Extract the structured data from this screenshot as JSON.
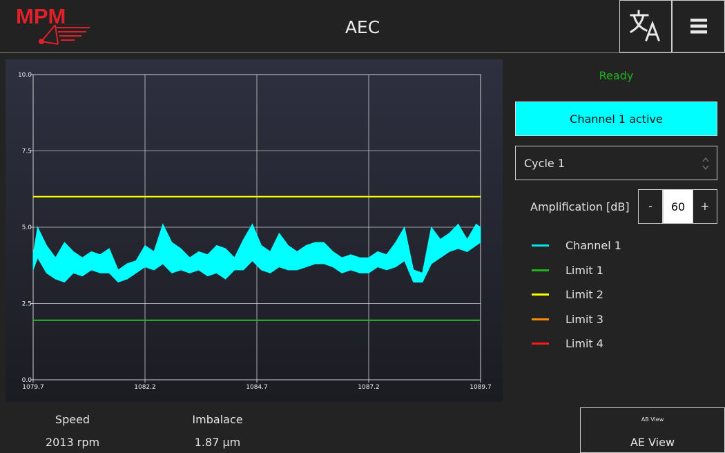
{
  "header": {
    "title": "AEC",
    "logo_text": "MPM",
    "logo_color": "#e0202a",
    "translate_icon": "translate-icon",
    "menu_icon": "hamburger-menu-icon"
  },
  "status": {
    "text": "Ready",
    "color": "#1fb51f"
  },
  "channel_button": {
    "label": "Channel 1 active",
    "color": "#00ffff"
  },
  "cycle_select": {
    "value": "Cycle 1"
  },
  "amplification": {
    "label": "Amplification [dB]",
    "value": "60",
    "minus_label": "-",
    "plus_label": "+"
  },
  "legend": [
    {
      "label": "Channel 1",
      "color": "#00e5ee"
    },
    {
      "label": "Limit 1",
      "color": "#22b522"
    },
    {
      "label": "Limit 2",
      "color": "#ffff00"
    },
    {
      "label": "Limit 3",
      "color": "#ff8c00"
    },
    {
      "label": "Limit 4",
      "color": "#ff1a1a"
    }
  ],
  "info": {
    "speed_label": "Speed",
    "speed_value": "2013 rpm",
    "imbalance_label": "Imbalace",
    "imbalance_value": "1.87 µm"
  },
  "view_button": {
    "small_label": "AB View",
    "label": "AE View"
  },
  "chart_data": {
    "type": "area",
    "x_ticks": [
      "1079.7",
      "1082.2",
      "1084.7",
      "1087.2",
      "1089.7"
    ],
    "y_ticks": [
      "0.0",
      "2.5",
      "5.0",
      "7.5",
      "10.0"
    ],
    "xlim": [
      1079.7,
      1089.7
    ],
    "ylim": [
      0,
      10
    ],
    "grid": true,
    "limit_lines": [
      {
        "name": "Limit 1",
        "value": 1.95,
        "color": "#22b522"
      },
      {
        "name": "Limit 2",
        "value": 6.0,
        "color": "#ffff00"
      }
    ],
    "series": [
      {
        "name": "Channel 1",
        "color": "#00ffff",
        "x": [
          1079.7,
          1079.8,
          1080.0,
          1080.2,
          1080.4,
          1080.6,
          1080.8,
          1081.0,
          1081.2,
          1081.4,
          1081.6,
          1081.8,
          1082.0,
          1082.2,
          1082.4,
          1082.6,
          1082.8,
          1083.0,
          1083.2,
          1083.4,
          1083.6,
          1083.8,
          1084.0,
          1084.2,
          1084.4,
          1084.6,
          1084.8,
          1085.0,
          1085.2,
          1085.4,
          1085.6,
          1085.8,
          1086.0,
          1086.2,
          1086.4,
          1086.6,
          1086.8,
          1087.0,
          1087.2,
          1087.4,
          1087.6,
          1087.8,
          1088.0,
          1088.2,
          1088.4,
          1088.6,
          1088.8,
          1089.0,
          1089.2,
          1089.4,
          1089.6,
          1089.7
        ],
        "upper": [
          4.1,
          5.0,
          4.4,
          4.0,
          4.5,
          4.2,
          4.0,
          4.2,
          4.1,
          4.3,
          3.6,
          3.8,
          3.9,
          4.4,
          4.2,
          5.1,
          4.5,
          4.3,
          4.0,
          4.2,
          4.1,
          4.4,
          4.3,
          4.0,
          4.6,
          5.1,
          4.4,
          4.2,
          4.8,
          4.4,
          4.2,
          4.4,
          4.5,
          4.5,
          4.2,
          4.0,
          4.1,
          4.0,
          4.0,
          4.2,
          4.1,
          4.5,
          5.0,
          3.6,
          3.5,
          5.0,
          4.6,
          4.8,
          5.1,
          4.6,
          5.1,
          5.0
        ],
        "lower": [
          3.6,
          4.0,
          3.5,
          3.3,
          3.2,
          3.5,
          3.4,
          3.6,
          3.5,
          3.5,
          3.2,
          3.3,
          3.5,
          3.7,
          3.6,
          3.8,
          3.5,
          3.6,
          3.5,
          3.6,
          3.4,
          3.5,
          3.3,
          3.6,
          3.6,
          3.9,
          3.6,
          3.5,
          3.7,
          3.6,
          3.6,
          3.7,
          3.8,
          3.8,
          3.7,
          3.5,
          3.6,
          3.5,
          3.5,
          3.7,
          3.6,
          3.7,
          3.9,
          3.2,
          3.2,
          3.8,
          4.0,
          4.2,
          4.3,
          4.2,
          4.4,
          4.5
        ]
      }
    ]
  }
}
